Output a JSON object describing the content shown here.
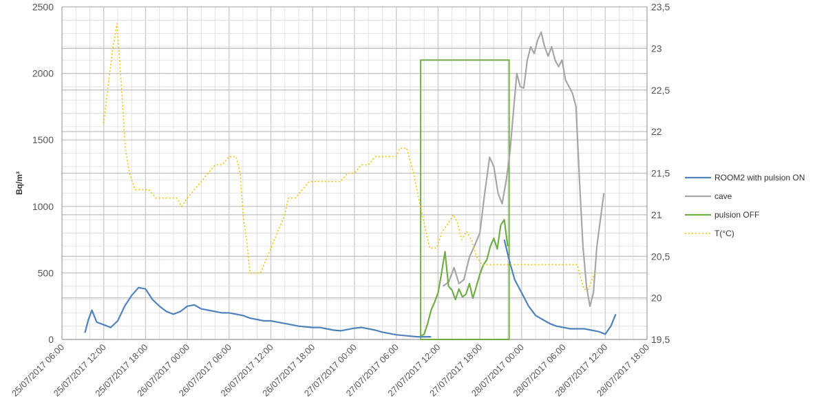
{
  "chart_data": {
    "type": "line",
    "title": "",
    "xlabel": "",
    "ylabel": "Bq/m³",
    "ylim": [
      0,
      2500
    ],
    "y2lim": [
      19.5,
      23.5
    ],
    "x_ticks": [
      "25/07/2017 06:00",
      "25/07/2017 12:00",
      "25/07/2017 18:00",
      "26/07/2017 00:00",
      "26/07/2017 06:00",
      "26/07/2017 12:00",
      "26/07/2017 18:00",
      "27/07/2017 00:00",
      "27/07/2017 06:00",
      "27/07/2017 12:00",
      "27/07/2017 18:00",
      "28/07/2017 00:00",
      "28/07/2017 06:00",
      "28/07/2017 12:00",
      "28/07/2017 18:00"
    ],
    "y_ticks": [
      "0",
      "500",
      "1000",
      "1500",
      "2000",
      "2500"
    ],
    "y2_ticks": [
      "19,5",
      "20",
      "20,5",
      "21",
      "21,5",
      "22",
      "22,5",
      "23",
      "23,5"
    ],
    "x_unit": "hours after 25/07/2017 06:00",
    "grid": true,
    "legend_position": "right",
    "series": [
      {
        "name": "ROOM2 with pulsion ON",
        "axis": "left",
        "color": "#4f81bd",
        "points": [
          [
            3.3,
            50
          ],
          [
            3.8,
            150
          ],
          [
            4.3,
            220
          ],
          [
            5,
            130
          ],
          [
            6,
            110
          ],
          [
            7,
            90
          ],
          [
            8,
            140
          ],
          [
            9,
            250
          ],
          [
            10,
            330
          ],
          [
            11,
            390
          ],
          [
            12,
            380
          ],
          [
            13,
            300
          ],
          [
            14,
            250
          ],
          [
            15,
            210
          ],
          [
            16,
            190
          ],
          [
            17,
            210
          ],
          [
            18,
            250
          ],
          [
            19,
            260
          ],
          [
            20,
            230
          ],
          [
            21,
            220
          ],
          [
            22,
            210
          ],
          [
            23,
            200
          ],
          [
            24,
            200
          ],
          [
            25,
            190
          ],
          [
            26,
            180
          ],
          [
            27,
            160
          ],
          [
            28,
            150
          ],
          [
            29,
            140
          ],
          [
            30,
            140
          ],
          [
            31,
            130
          ],
          [
            32,
            120
          ],
          [
            33,
            110
          ],
          [
            34,
            100
          ],
          [
            35,
            95
          ],
          [
            36,
            90
          ],
          [
            37,
            90
          ],
          [
            38,
            80
          ],
          [
            39,
            70
          ],
          [
            40,
            65
          ],
          [
            41,
            75
          ],
          [
            42,
            85
          ],
          [
            43,
            90
          ],
          [
            44,
            80
          ],
          [
            45,
            70
          ],
          [
            46,
            55
          ],
          [
            47,
            45
          ],
          [
            48,
            35
          ],
          [
            49,
            30
          ],
          [
            50,
            25
          ],
          [
            51,
            20
          ],
          [
            52,
            20
          ],
          [
            53,
            20
          ]
        ]
      },
      {
        "name": "ROOM2 with pulsion ON",
        "axis": "left",
        "color": "#4f81bd",
        "points": [
          [
            63.5,
            750
          ],
          [
            64.2,
            600
          ],
          [
            65,
            450
          ],
          [
            66,
            350
          ],
          [
            67,
            250
          ],
          [
            68,
            180
          ],
          [
            69,
            150
          ],
          [
            70,
            120
          ],
          [
            71,
            100
          ],
          [
            72,
            90
          ],
          [
            73,
            80
          ],
          [
            74,
            80
          ],
          [
            75,
            80
          ],
          [
            76,
            70
          ],
          [
            77,
            60
          ],
          [
            78,
            40
          ],
          [
            78.8,
            100
          ],
          [
            79.5,
            190
          ]
        ]
      },
      {
        "name": "cave",
        "axis": "left",
        "color": "#a6a6a6",
        "points": [
          [
            54.7,
            400
          ],
          [
            55.5,
            430
          ],
          [
            56.3,
            540
          ],
          [
            57,
            420
          ],
          [
            57.7,
            450
          ],
          [
            58.5,
            620
          ],
          [
            59.2,
            700
          ],
          [
            60,
            800
          ],
          [
            60.7,
            1100
          ],
          [
            61.4,
            1370
          ],
          [
            62,
            1300
          ],
          [
            62.6,
            1100
          ],
          [
            63.2,
            1020
          ],
          [
            63.8,
            1200
          ],
          [
            64.3,
            1400
          ],
          [
            64.8,
            1700
          ],
          [
            65.3,
            2000
          ],
          [
            65.8,
            1900
          ],
          [
            66.3,
            1890
          ],
          [
            66.8,
            2100
          ],
          [
            67.3,
            2200
          ],
          [
            67.8,
            2150
          ],
          [
            68.3,
            2250
          ],
          [
            68.8,
            2310
          ],
          [
            69.3,
            2200
          ],
          [
            69.8,
            2130
          ],
          [
            70.3,
            2200
          ],
          [
            70.8,
            2100
          ],
          [
            71.3,
            2050
          ],
          [
            71.8,
            2100
          ],
          [
            72.3,
            1950
          ],
          [
            72.8,
            1900
          ],
          [
            73.3,
            1850
          ],
          [
            73.8,
            1750
          ],
          [
            74.3,
            1200
          ],
          [
            74.8,
            700
          ],
          [
            75.3,
            400
          ],
          [
            75.8,
            250
          ],
          [
            76.3,
            350
          ],
          [
            76.8,
            700
          ],
          [
            77.3,
            900
          ],
          [
            77.8,
            1100
          ]
        ]
      },
      {
        "name": "pulsion OFF",
        "axis": "left",
        "color": "#70ad47",
        "points": [
          [
            51.5,
            25
          ],
          [
            52,
            40
          ],
          [
            52.5,
            120
          ],
          [
            53,
            220
          ],
          [
            53.5,
            280
          ],
          [
            54,
            350
          ],
          [
            54.5,
            500
          ],
          [
            55,
            660
          ],
          [
            55.5,
            400
          ],
          [
            56,
            370
          ],
          [
            56.5,
            300
          ],
          [
            57,
            380
          ],
          [
            57.5,
            320
          ],
          [
            58,
            340
          ],
          [
            58.5,
            420
          ],
          [
            59,
            310
          ],
          [
            59.5,
            400
          ],
          [
            60,
            490
          ],
          [
            60.5,
            560
          ],
          [
            61,
            600
          ],
          [
            61.5,
            700
          ],
          [
            62,
            760
          ],
          [
            62.5,
            680
          ],
          [
            63,
            860
          ],
          [
            63.5,
            900
          ],
          [
            64,
            700
          ]
        ]
      },
      {
        "name": "T(°C)",
        "axis": "right",
        "color": "#f2c200",
        "dashed": true,
        "points": [
          [
            6,
            22.1
          ],
          [
            6.7,
            22.6
          ],
          [
            7.3,
            23
          ],
          [
            7.9,
            23.3
          ],
          [
            8.5,
            22.6
          ],
          [
            9.1,
            21.8
          ],
          [
            9.7,
            21.5
          ],
          [
            10.5,
            21.3
          ],
          [
            11.5,
            21.3
          ],
          [
            12.5,
            21.3
          ],
          [
            13.5,
            21.2
          ],
          [
            14.5,
            21.2
          ],
          [
            15.5,
            21.2
          ],
          [
            16.5,
            21.2
          ],
          [
            17.2,
            21.1
          ],
          [
            18,
            21.2
          ],
          [
            19,
            21.3
          ],
          [
            20,
            21.4
          ],
          [
            21,
            21.5
          ],
          [
            22,
            21.6
          ],
          [
            23,
            21.6
          ],
          [
            24,
            21.7
          ],
          [
            25,
            21.7
          ],
          [
            25.6,
            21.5
          ],
          [
            26,
            21
          ],
          [
            26.5,
            20.7
          ],
          [
            27,
            20.3
          ],
          [
            27.5,
            20.3
          ],
          [
            28.5,
            20.3
          ],
          [
            29,
            20.4
          ],
          [
            30,
            20.6
          ],
          [
            31,
            20.8
          ],
          [
            32,
            21
          ],
          [
            32.5,
            21.2
          ],
          [
            33.5,
            21.2
          ],
          [
            34.5,
            21.3
          ],
          [
            35.5,
            21.4
          ],
          [
            37,
            21.4
          ],
          [
            38.5,
            21.4
          ],
          [
            40,
            21.4
          ],
          [
            41,
            21.5
          ],
          [
            42,
            21.5
          ],
          [
            43,
            21.6
          ],
          [
            44,
            21.6
          ],
          [
            45,
            21.7
          ],
          [
            46,
            21.7
          ],
          [
            47,
            21.7
          ],
          [
            48,
            21.7
          ],
          [
            48.5,
            21.8
          ],
          [
            49.5,
            21.8
          ],
          [
            50.5,
            21.5
          ],
          [
            51.2,
            21.2
          ],
          [
            52,
            20.9
          ],
          [
            52.8,
            20.6
          ],
          [
            53.8,
            20.6
          ],
          [
            54.6,
            20.8
          ],
          [
            55.5,
            20.9
          ],
          [
            56.2,
            21
          ],
          [
            56.8,
            20.9
          ],
          [
            57.4,
            20.7
          ],
          [
            58.1,
            20.8
          ],
          [
            58.8,
            20.7
          ],
          [
            59.5,
            20.5
          ],
          [
            60.3,
            20.4
          ],
          [
            61,
            20.4
          ],
          [
            62,
            20.4
          ],
          [
            63,
            20.4
          ],
          [
            64,
            20.4
          ],
          [
            65,
            20.4
          ],
          [
            66,
            20.4
          ],
          [
            67,
            20.4
          ],
          [
            68,
            20.4
          ],
          [
            69,
            20.4
          ],
          [
            70,
            20.4
          ],
          [
            71,
            20.4
          ],
          [
            72,
            20.4
          ],
          [
            73,
            20.4
          ],
          [
            74,
            20.4
          ],
          [
            74.6,
            20.2
          ],
          [
            75,
            20.1
          ],
          [
            75.6,
            20.1
          ],
          [
            76,
            20.2
          ],
          [
            76.5,
            20.3
          ]
        ]
      }
    ],
    "annotations": [
      {
        "type": "rectangle",
        "color": "#70ad47",
        "x_range": [
          51.5,
          64.2
        ],
        "y_range": [
          0,
          2100
        ]
      }
    ]
  }
}
